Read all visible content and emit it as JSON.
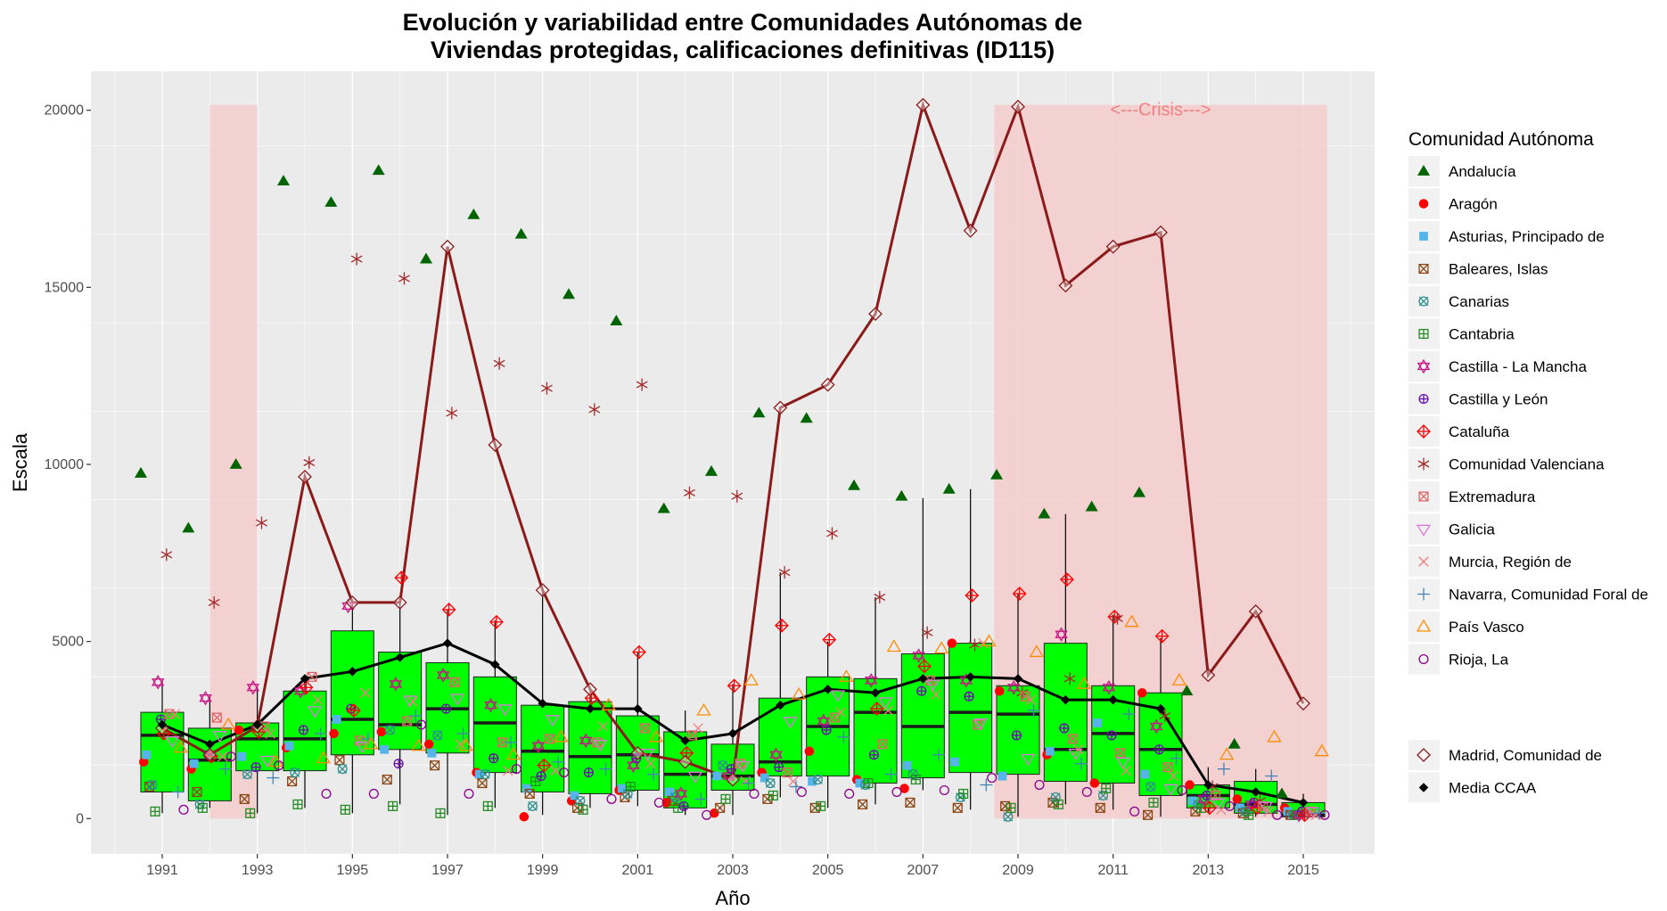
{
  "chart_data": {
    "type": "boxplot",
    "title_lines": [
      "Evolución y variabilidad entre Comunidades Autónomas de",
      "Viviendas protegidas, calificaciones definitivas (ID115)"
    ],
    "xlabel": "Año",
    "ylabel": "Escala",
    "xlim": [
      1989.5,
      2016.5
    ],
    "ylim": [
      -1000,
      21100
    ],
    "x_ticks": [
      1991,
      1993,
      1995,
      1997,
      1999,
      2001,
      2003,
      2005,
      2007,
      2009,
      2011,
      2013,
      2015
    ],
    "y_ticks": [
      0,
      5000,
      10000,
      15000,
      20000
    ],
    "grid": true,
    "background": "#ebebeb",
    "shaded_periods": [
      {
        "start": 1992,
        "end": 1993,
        "label": ""
      },
      {
        "start": 2008.5,
        "end": 2015.5,
        "label": "<---Crisis--->"
      }
    ],
    "shade_color": "#f4cccc",
    "box_color": "#00ff00",
    "years": [
      1991,
      1992,
      1993,
      1994,
      1995,
      1996,
      1997,
      1998,
      1999,
      2000,
      2001,
      2002,
      2003,
      2004,
      2005,
      2006,
      2007,
      2008,
      2009,
      2010,
      2011,
      2012,
      2013,
      2014,
      2015
    ],
    "boxes": [
      {
        "year": 1991,
        "whisker_low": 150,
        "q1": 750,
        "median": 2350,
        "q3": 3000,
        "whisker_high": 3900
      },
      {
        "year": 1992,
        "whisker_low": 300,
        "q1": 500,
        "median": 1650,
        "q3": 2550,
        "whisker_high": 3450
      },
      {
        "year": 1993,
        "whisker_low": 150,
        "q1": 1350,
        "median": 2250,
        "q3": 2700,
        "whisker_high": 3700
      },
      {
        "year": 1994,
        "whisker_low": 300,
        "q1": 1350,
        "median": 2250,
        "q3": 3600,
        "whisker_high": 3900
      },
      {
        "year": 1995,
        "whisker_low": 150,
        "q1": 1800,
        "median": 2800,
        "q3": 5300,
        "whisker_high": 6100
      },
      {
        "year": 1996,
        "whisker_low": 400,
        "q1": 1950,
        "median": 2650,
        "q3": 4700,
        "whisker_high": 6100
      },
      {
        "year": 1997,
        "whisker_low": 100,
        "q1": 1850,
        "median": 3100,
        "q3": 4400,
        "whisker_high": 5900
      },
      {
        "year": 1998,
        "whisker_low": 300,
        "q1": 1300,
        "median": 2700,
        "q3": 4000,
        "whisker_high": 5600
      },
      {
        "year": 1999,
        "whisker_low": 100,
        "q1": 750,
        "median": 1900,
        "q3": 3200,
        "whisker_high": 6400
      },
      {
        "year": 2000,
        "whisker_low": 300,
        "q1": 700,
        "median": 1750,
        "q3": 3300,
        "whisker_high": 3700
      },
      {
        "year": 2001,
        "whisker_low": 350,
        "q1": 800,
        "median": 1800,
        "q3": 2900,
        "whisker_high": 4700
      },
      {
        "year": 2002,
        "whisker_low": 100,
        "q1": 300,
        "median": 1250,
        "q3": 2450,
        "whisker_high": 3050
      },
      {
        "year": 2003,
        "whisker_low": 100,
        "q1": 800,
        "median": 1200,
        "q3": 2100,
        "whisker_high": 3800
      },
      {
        "year": 2004,
        "whisker_low": 600,
        "q1": 1200,
        "median": 1600,
        "q3": 3400,
        "whisker_high": 6950
      },
      {
        "year": 2005,
        "whisker_low": 300,
        "q1": 1200,
        "median": 2600,
        "q3": 4000,
        "whisker_high": 5000
      },
      {
        "year": 2006,
        "whisker_low": 400,
        "q1": 1000,
        "median": 3000,
        "q3": 3950,
        "whisker_high": 6250
      },
      {
        "year": 2007,
        "whisker_low": 800,
        "q1": 1150,
        "median": 2600,
        "q3": 4650,
        "whisker_high": 9050
      },
      {
        "year": 2008,
        "whisker_low": 250,
        "q1": 1300,
        "median": 3000,
        "q3": 4950,
        "whisker_high": 9300
      },
      {
        "year": 2009,
        "whisker_low": 50,
        "q1": 1250,
        "median": 2950,
        "q3": 3750,
        "whisker_high": 6350
      },
      {
        "year": 2010,
        "whisker_low": 400,
        "q1": 1050,
        "median": 1950,
        "q3": 4950,
        "whisker_high": 8600
      },
      {
        "year": 2011,
        "whisker_low": 250,
        "q1": 1000,
        "median": 2400,
        "q3": 3750,
        "whisker_high": 5750
      },
      {
        "year": 2012,
        "whisker_low": 50,
        "q1": 650,
        "median": 1950,
        "q3": 3550,
        "whisker_high": 5100
      },
      {
        "year": 2013,
        "whisker_low": 150,
        "q1": 300,
        "median": 650,
        "q3": 950,
        "whisker_high": 1450
      },
      {
        "year": 2014,
        "whisker_low": 50,
        "q1": 150,
        "median": 400,
        "q3": 1050,
        "whisker_high": 1400
      },
      {
        "year": 2015,
        "whisker_low": 20,
        "q1": 50,
        "median": 100,
        "q3": 450,
        "whisker_high": 700
      }
    ],
    "series": [
      {
        "name": "Andalucía",
        "shape": "triangle-filled",
        "color": "#006400",
        "values": [
          9750,
          8200,
          10000,
          18000,
          17400,
          18300,
          15800,
          17050,
          16500,
          14800,
          14050,
          8750,
          9800,
          11450,
          11300,
          9400,
          9100,
          9300,
          9700,
          8600,
          8800,
          9200,
          3600,
          2100,
          700
        ]
      },
      {
        "name": "Aragón",
        "shape": "circle-filled",
        "color": "#ff0000",
        "values": [
          1600,
          1400,
          2500,
          2000,
          2400,
          2450,
          2100,
          1300,
          50,
          500,
          800,
          450,
          150,
          1300,
          1900,
          1100,
          850,
          4950,
          3600,
          1800,
          1000,
          3550,
          950,
          550,
          300
        ]
      },
      {
        "name": "Asturias, Principado de",
        "shape": "square-filled",
        "color": "#56b4e9",
        "values": [
          1800,
          1550,
          1750,
          2050,
          2800,
          1950,
          1850,
          1250,
          850,
          650,
          850,
          750,
          1200,
          1150,
          1050,
          1000,
          1500,
          1600,
          1200,
          1900,
          2700,
          1250,
          500,
          300,
          200
        ]
      },
      {
        "name": "Baleares, Islas",
        "shape": "square-cross",
        "color": "#8b4513",
        "values": [
          900,
          750,
          550,
          1050,
          1650,
          1100,
          1500,
          1000,
          700,
          300,
          600,
          500,
          300,
          550,
          300,
          400,
          450,
          300,
          350,
          450,
          300,
          100,
          200,
          150,
          100
        ]
      },
      {
        "name": "Canarias",
        "shape": "circle-x",
        "color": "#2f8f8f",
        "values": [
          950,
          400,
          1250,
          1300,
          1400,
          2500,
          2350,
          1250,
          350,
          500,
          700,
          600,
          1500,
          1000,
          1100,
          950,
          1250,
          600,
          50,
          600,
          650,
          900,
          400,
          200,
          100
        ]
      },
      {
        "name": "Cantabria",
        "shape": "square-plus",
        "color": "#228b22",
        "values": [
          200,
          300,
          150,
          400,
          250,
          350,
          150,
          350,
          1050,
          250,
          900,
          300,
          550,
          650,
          350,
          1000,
          1100,
          700,
          300,
          400,
          850,
          450,
          300,
          100,
          100
        ]
      },
      {
        "name": "Castilla - La Mancha",
        "shape": "star-of-david",
        "color": "#c71585",
        "values": [
          3850,
          3400,
          3700,
          3600,
          6000,
          3800,
          4050,
          3200,
          2050,
          2200,
          1500,
          700,
          1200,
          1800,
          2750,
          3900,
          4600,
          3900,
          3700,
          5200,
          3700,
          2600,
          550,
          400,
          100
        ]
      },
      {
        "name": "Castilla y León",
        "shape": "circle-plus",
        "color": "#6a0dad",
        "values": [
          2800,
          1800,
          1450,
          2500,
          3100,
          1550,
          3100,
          1700,
          1200,
          1300,
          1700,
          350,
          1400,
          1450,
          2500,
          1800,
          3600,
          3450,
          2350,
          2550,
          2350,
          1950,
          650,
          450,
          200
        ]
      },
      {
        "name": "Cataluña",
        "shape": "diamond-plus",
        "color": "#ff0000",
        "values": [
          2400,
          1750,
          2450,
          3700,
          3050,
          6800,
          5900,
          5550,
          1500,
          3400,
          4700,
          1850,
          3750,
          5450,
          5050,
          3100,
          4300,
          6300,
          6350,
          6750,
          5700,
          5150,
          300,
          300,
          100
        ]
      },
      {
        "name": "Comunidad Valenciana",
        "shape": "asterisk",
        "color": "#a52a2a",
        "values": [
          7450,
          6100,
          8350,
          10050,
          15800,
          15250,
          11450,
          12850,
          12150,
          11550,
          12250,
          9200,
          9100,
          6950,
          8050,
          6250,
          5250,
          4900,
          3550,
          3950,
          5650,
          2900,
          900,
          500,
          150
        ]
      },
      {
        "name": "Extremadura",
        "shape": "square-x",
        "color": "#e06666",
        "values": [
          2950,
          2850,
          2600,
          4000,
          2200,
          2750,
          3850,
          2150,
          2250,
          2150,
          2550,
          2350,
          1550,
          1300,
          2850,
          2100,
          3900,
          2650,
          3450,
          2250,
          1850,
          1450,
          650,
          350,
          200
        ]
      },
      {
        "name": "Galicia",
        "shape": "triangle-down",
        "color": "#e077e0",
        "values": [
          2200,
          2350,
          1650,
          3050,
          2050,
          3350,
          3400,
          3100,
          2800,
          2100,
          1850,
          1200,
          1500,
          2750,
          3500,
          3300,
          3800,
          2700,
          1700,
          1850,
          1600,
          850,
          450,
          350,
          200
        ]
      },
      {
        "name": "Murcia, Región de",
        "shape": "x",
        "color": "#f08080",
        "values": [
          2950,
          1750,
          2400,
          3350,
          3550,
          3300,
          2100,
          1350,
          1350,
          2600,
          1550,
          2550,
          1050,
          1050,
          3000,
          3050,
          3500,
          4950,
          3350,
          1950,
          1350,
          1200,
          250,
          200,
          100
        ]
      },
      {
        "name": "Navarra, Comunidad Foral de",
        "shape": "plus",
        "color": "#4682b4",
        "values": [
          750,
          1400,
          1150,
          2400,
          2250,
          2900,
          2400,
          2150,
          1600,
          1400,
          1250,
          550,
          1000,
          900,
          2300,
          1250,
          1800,
          950,
          3050,
          1550,
          2950,
          1700,
          1400,
          1200,
          150
        ]
      },
      {
        "name": "País Vasco",
        "shape": "triangle-open",
        "color": "#ff8c00",
        "values": [
          2000,
          2650,
          1600,
          1700,
          2100,
          2050,
          2050,
          1800,
          2300,
          3200,
          2300,
          3050,
          3900,
          3500,
          4000,
          4850,
          4800,
          5000,
          4700,
          3800,
          5550,
          3900,
          1800,
          2300,
          1900
        ]
      },
      {
        "name": "Rioja, La",
        "shape": "circle-open",
        "color": "#8b008b",
        "values": [
          250,
          1750,
          1500,
          700,
          700,
          2650,
          700,
          1400,
          1300,
          550,
          450,
          100,
          700,
          750,
          700,
          750,
          800,
          1150,
          950,
          750,
          200,
          800,
          350,
          100,
          100
        ]
      },
      {
        "name": "Madrid, Comunidad de",
        "shape": "diamond-open",
        "color": "#8b1a1a",
        "line": true,
        "values": [
          2550,
          1800,
          2600,
          9650,
          6100,
          6100,
          16150,
          10550,
          6450,
          3650,
          1850,
          1600,
          1100,
          11600,
          12250,
          14250,
          20150,
          16600,
          20100,
          15050,
          16150,
          16550,
          4050,
          5850,
          3250
        ]
      },
      {
        "name": "Media CCAA",
        "shape": "diamond-filled",
        "color": "#000000",
        "line": true,
        "values": [
          2650,
          2100,
          2650,
          3950,
          4150,
          4550,
          4950,
          4350,
          3250,
          3100,
          3100,
          2200,
          2400,
          3200,
          3650,
          3550,
          3950,
          4000,
          3950,
          3350,
          3350,
          3100,
          950,
          750,
          450
        ]
      }
    ],
    "legend": {
      "title": "Comunidad Autónoma",
      "position": "right",
      "group1": [
        "Andalucía",
        "Aragón",
        "Asturias, Principado de",
        "Baleares, Islas",
        "Canarias",
        "Cantabria",
        "Castilla - La Mancha",
        "Castilla y León",
        "Cataluña",
        "Comunidad Valenciana",
        "Extremadura",
        "Galicia",
        "Murcia, Región de",
        "Navarra, Comunidad Foral de",
        "País Vasco",
        "Rioja, La"
      ],
      "group2": [
        "Madrid, Comunidad de",
        "Media CCAA"
      ]
    }
  }
}
